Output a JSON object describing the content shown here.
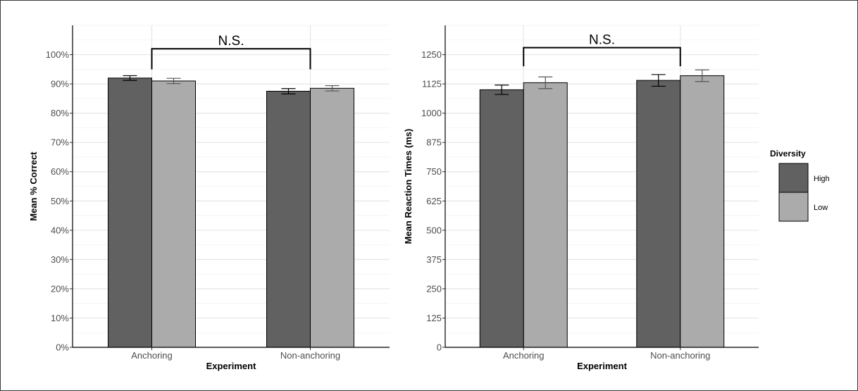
{
  "legend": {
    "title": "Diversity",
    "items": [
      {
        "label": "High",
        "color": "#616161"
      },
      {
        "label": "Low",
        "color": "#ababab"
      }
    ]
  },
  "chart_data": [
    {
      "type": "bar",
      "title": "",
      "xlabel": "Experiment",
      "ylabel": "Mean % Correct",
      "categories": [
        "Anchoring",
        "Non-anchoring"
      ],
      "series": [
        {
          "name": "High",
          "values": [
            92,
            87.5
          ],
          "errors": [
            0.8,
            0.9
          ]
        },
        {
          "name": "Low",
          "values": [
            91,
            88.5
          ],
          "errors": [
            0.9,
            0.9
          ]
        }
      ],
      "ylim": [
        0,
        110
      ],
      "yticks": [
        0,
        10,
        20,
        30,
        40,
        50,
        60,
        70,
        80,
        90,
        100
      ],
      "ytick_labels": [
        "0%",
        "10%",
        "20%",
        "30%",
        "40%",
        "50%",
        "60%",
        "70%",
        "80%",
        "90%",
        "100%"
      ],
      "annotation": {
        "text": "N.S.",
        "level": 102,
        "drop_to": 95
      },
      "grid": true,
      "legend": "none"
    },
    {
      "type": "bar",
      "title": "",
      "xlabel": "Experiment",
      "ylabel": "Mean Reaction Times (ms)",
      "categories": [
        "Anchoring",
        "Non-anchoring"
      ],
      "series": [
        {
          "name": "High",
          "values": [
            1100,
            1140
          ],
          "errors": [
            20,
            25
          ]
        },
        {
          "name": "Low",
          "values": [
            1130,
            1160
          ],
          "errors": [
            25,
            25
          ]
        }
      ],
      "ylim": [
        0,
        1375
      ],
      "yticks": [
        0,
        125,
        250,
        375,
        500,
        625,
        750,
        875,
        1000,
        1125,
        1250
      ],
      "ytick_labels": [
        "0",
        "125",
        "250",
        "375",
        "500",
        "625",
        "750",
        "875",
        "1000",
        "1125",
        "1250"
      ],
      "annotation": {
        "text": "N.S.",
        "level": 1280,
        "drop_to": 1200
      },
      "grid": true,
      "legend": "right"
    }
  ]
}
